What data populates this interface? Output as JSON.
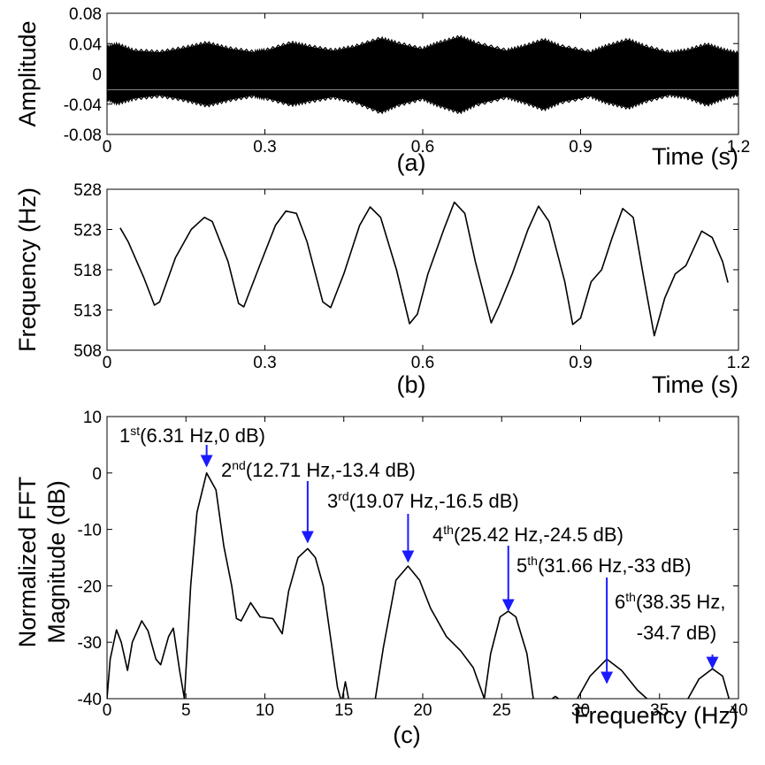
{
  "chart_data": [
    {
      "type": "line",
      "panel_label": "(a)",
      "xlabel": "Time (s)",
      "ylabel": "Amplitude",
      "xlim": [
        0,
        1.2
      ],
      "ylim": [
        -0.08,
        0.08
      ],
      "xticks": [
        "0",
        "0.3",
        "0.6",
        "0.9",
        "1.2"
      ],
      "yticks": [
        "0.08",
        "0.04",
        "0",
        "-0.04",
        "-0.08"
      ],
      "series": [
        {
          "envelope_upper": [
            [
              0,
              0.034
            ],
            [
              0.02,
              0.038
            ],
            [
              0.05,
              0.03
            ],
            [
              0.1,
              0.028
            ],
            [
              0.15,
              0.034
            ],
            [
              0.19,
              0.04
            ],
            [
              0.23,
              0.033
            ],
            [
              0.28,
              0.028
            ],
            [
              0.3,
              0.03
            ],
            [
              0.35,
              0.04
            ],
            [
              0.38,
              0.036
            ],
            [
              0.43,
              0.03
            ],
            [
              0.47,
              0.035
            ],
            [
              0.52,
              0.046
            ],
            [
              0.55,
              0.04
            ],
            [
              0.6,
              0.032
            ],
            [
              0.63,
              0.04
            ],
            [
              0.67,
              0.048
            ],
            [
              0.7,
              0.04
            ],
            [
              0.76,
              0.03
            ],
            [
              0.79,
              0.035
            ],
            [
              0.83,
              0.044
            ],
            [
              0.86,
              0.036
            ],
            [
              0.92,
              0.028
            ],
            [
              0.95,
              0.036
            ],
            [
              0.99,
              0.044
            ],
            [
              1.02,
              0.036
            ],
            [
              1.07,
              0.027
            ],
            [
              1.1,
              0.03
            ],
            [
              1.14,
              0.038
            ],
            [
              1.17,
              0.031
            ],
            [
              1.2,
              0.026
            ]
          ],
          "envelope_lower": [
            [
              0,
              -0.032
            ],
            [
              0.02,
              -0.038
            ],
            [
              0.05,
              -0.032
            ],
            [
              0.1,
              -0.028
            ],
            [
              0.15,
              -0.034
            ],
            [
              0.19,
              -0.041
            ],
            [
              0.23,
              -0.034
            ],
            [
              0.28,
              -0.028
            ],
            [
              0.3,
              -0.031
            ],
            [
              0.35,
              -0.04
            ],
            [
              0.38,
              -0.036
            ],
            [
              0.43,
              -0.03
            ],
            [
              0.47,
              -0.036
            ],
            [
              0.52,
              -0.05
            ],
            [
              0.55,
              -0.041
            ],
            [
              0.6,
              -0.032
            ],
            [
              0.63,
              -0.041
            ],
            [
              0.67,
              -0.05
            ],
            [
              0.7,
              -0.04
            ],
            [
              0.76,
              -0.03
            ],
            [
              0.79,
              -0.036
            ],
            [
              0.83,
              -0.046
            ],
            [
              0.86,
              -0.037
            ],
            [
              0.92,
              -0.029
            ],
            [
              0.95,
              -0.037
            ],
            [
              0.99,
              -0.044
            ],
            [
              1.02,
              -0.036
            ],
            [
              1.07,
              -0.027
            ],
            [
              1.1,
              -0.03
            ],
            [
              1.14,
              -0.04
            ],
            [
              1.17,
              -0.032
            ],
            [
              1.2,
              -0.026
            ]
          ]
        }
      ]
    },
    {
      "type": "line",
      "panel_label": "(b)",
      "xlabel": "Time (s)",
      "ylabel": "Frequency (Hz)",
      "xlim": [
        0,
        1.2
      ],
      "ylim": [
        508,
        528
      ],
      "xticks": [
        "0",
        "0.3",
        "0.6",
        "0.9",
        "1.2"
      ],
      "yticks": [
        "528",
        "523",
        "518",
        "513",
        "508"
      ],
      "series": [
        {
          "points": [
            [
              0.025,
              523.2
            ],
            [
              0.04,
              521.5
            ],
            [
              0.07,
              517.0
            ],
            [
              0.09,
              513.6
            ],
            [
              0.1,
              514.0
            ],
            [
              0.13,
              519.5
            ],
            [
              0.16,
              523.0
            ],
            [
              0.185,
              524.5
            ],
            [
              0.2,
              524.0
            ],
            [
              0.23,
              519.0
            ],
            [
              0.25,
              513.8
            ],
            [
              0.26,
              513.4
            ],
            [
              0.29,
              518.5
            ],
            [
              0.32,
              523.5
            ],
            [
              0.34,
              525.3
            ],
            [
              0.36,
              525.0
            ],
            [
              0.38,
              521.5
            ],
            [
              0.41,
              514.0
            ],
            [
              0.425,
              513.3
            ],
            [
              0.45,
              517.5
            ],
            [
              0.48,
              523.5
            ],
            [
              0.5,
              525.8
            ],
            [
              0.52,
              524.5
            ],
            [
              0.55,
              518.0
            ],
            [
              0.575,
              511.3
            ],
            [
              0.59,
              512.5
            ],
            [
              0.61,
              517.5
            ],
            [
              0.64,
              523.0
            ],
            [
              0.66,
              526.4
            ],
            [
              0.68,
              525.0
            ],
            [
              0.7,
              519.0
            ],
            [
              0.73,
              511.4
            ],
            [
              0.745,
              513.5
            ],
            [
              0.77,
              517.5
            ],
            [
              0.8,
              523.0
            ],
            [
              0.82,
              525.9
            ],
            [
              0.84,
              524.0
            ],
            [
              0.87,
              516.5
            ],
            [
              0.885,
              511.2
            ],
            [
              0.9,
              512.0
            ],
            [
              0.92,
              516.5
            ],
            [
              0.94,
              518.0
            ],
            [
              0.96,
              522.0
            ],
            [
              0.98,
              525.6
            ],
            [
              1.0,
              524.5
            ],
            [
              1.02,
              517.0
            ],
            [
              1.04,
              509.8
            ],
            [
              1.06,
              514.5
            ],
            [
              1.08,
              517.5
            ],
            [
              1.1,
              518.5
            ],
            [
              1.13,
              522.8
            ],
            [
              1.15,
              522.0
            ],
            [
              1.17,
              519.0
            ],
            [
              1.18,
              516.4
            ]
          ]
        }
      ]
    },
    {
      "type": "line",
      "panel_label": "(c)",
      "xlabel": "Frequency (Hz)",
      "ylabel_lines": [
        "Normalized FFT",
        "Magnitude (dB)"
      ],
      "xlim": [
        0,
        40
      ],
      "ylim": [
        -40,
        10
      ],
      "xticks": [
        "0",
        "5",
        "10",
        "15",
        "20",
        "25",
        "30",
        "35",
        "40"
      ],
      "yticks": [
        "10",
        "0",
        "-10",
        "-20",
        "-30",
        "-40"
      ],
      "series": [
        {
          "points": [
            [
              0.0,
              -40
            ],
            [
              0.2,
              -33
            ],
            [
              0.6,
              -27.8
            ],
            [
              0.9,
              -30
            ],
            [
              1.3,
              -35
            ],
            [
              1.6,
              -30
            ],
            [
              2.2,
              -26.2
            ],
            [
              2.6,
              -28
            ],
            [
              3.1,
              -33
            ],
            [
              3.4,
              -34
            ],
            [
              3.9,
              -29
            ],
            [
              4.2,
              -27.5
            ],
            [
              4.6,
              -35
            ],
            [
              4.9,
              -40
            ],
            [
              5.3,
              -20
            ],
            [
              5.7,
              -7
            ],
            [
              6.31,
              0
            ],
            [
              6.9,
              -3
            ],
            [
              7.4,
              -13
            ],
            [
              7.9,
              -20
            ],
            [
              8.2,
              -25.8
            ],
            [
              8.5,
              -26.2
            ],
            [
              9.1,
              -23
            ],
            [
              9.7,
              -25.5
            ],
            [
              10.5,
              -25.8
            ],
            [
              11.1,
              -28.5
            ],
            [
              11.5,
              -21
            ],
            [
              12.1,
              -15
            ],
            [
              12.71,
              -13.4
            ],
            [
              13.2,
              -15
            ],
            [
              13.7,
              -20
            ],
            [
              14.2,
              -30
            ],
            [
              14.6,
              -38
            ],
            [
              14.8,
              -40
            ]
          ],
          "points_2": [
            [
              14.9,
              -40
            ],
            [
              15.1,
              -37
            ],
            [
              15.3,
              -40
            ]
          ],
          "points_3": [
            [
              17.0,
              -40
            ],
            [
              17.5,
              -31
            ],
            [
              18.3,
              -19
            ],
            [
              19.07,
              -16.5
            ],
            [
              19.8,
              -19
            ],
            [
              20.5,
              -24
            ],
            [
              21.5,
              -29
            ],
            [
              22.4,
              -31.5
            ],
            [
              23.2,
              -34.5
            ],
            [
              23.9,
              -40
            ],
            [
              24.3,
              -32
            ],
            [
              24.9,
              -25.5
            ],
            [
              25.42,
              -24.5
            ],
            [
              25.9,
              -25.5
            ],
            [
              26.6,
              -32
            ],
            [
              27.0,
              -40
            ]
          ],
          "points_4": [
            [
              28.2,
              -40
            ],
            [
              28.4,
              -39.6
            ],
            [
              28.6,
              -40
            ]
          ],
          "points_5": [
            [
              29.8,
              -40
            ],
            [
              30.6,
              -36
            ],
            [
              31.66,
              -33
            ],
            [
              32.6,
              -35
            ],
            [
              33.6,
              -38.5
            ],
            [
              34.2,
              -40
            ]
          ],
          "points_6": [
            [
              36.8,
              -40
            ],
            [
              37.5,
              -36.5
            ],
            [
              38.35,
              -34.7
            ],
            [
              39.0,
              -36
            ],
            [
              39.4,
              -40
            ]
          ]
        }
      ],
      "annotations": [
        {
          "ordinal": "1",
          "sup": "st",
          "rest": "(6.31 Hz,0 dB)",
          "x": 6.31,
          "y": 0
        },
        {
          "ordinal": "2",
          "sup": "nd",
          "rest": "(12.71 Hz,-13.4 dB)",
          "x": 12.71,
          "y": -13.4
        },
        {
          "ordinal": "3",
          "sup": "rd",
          "rest": "(19.07 Hz,-16.5 dB)",
          "x": 19.07,
          "y": -16.5
        },
        {
          "ordinal": "4",
          "sup": "th",
          "rest": "(25.42 Hz,-24.5 dB)",
          "x": 25.42,
          "y": -24.5
        },
        {
          "ordinal": "5",
          "sup": "th",
          "rest": "(31.66 Hz,-33 dB)",
          "x": 31.66,
          "y": -33
        },
        {
          "ordinal": "6",
          "sup": "th",
          "rest": "(38.35 Hz,",
          "rest2": "-34.7 dB)",
          "x": 38.35,
          "y": -34.7
        }
      ],
      "arrow_color": "#1a1aff"
    }
  ]
}
